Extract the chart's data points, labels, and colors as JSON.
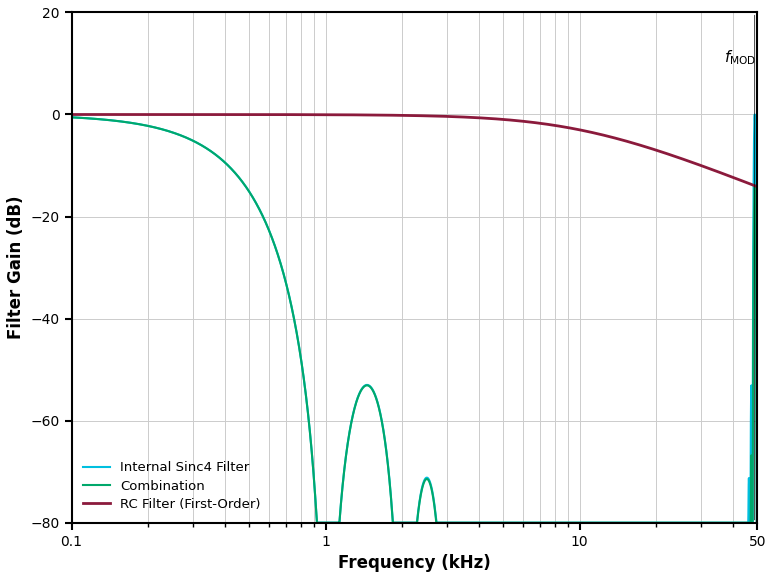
{
  "title": "",
  "xlabel": "Frequency (kHz)",
  "ylabel": "Filter Gain (dB)",
  "xlim_log": [
    0.1,
    50
  ],
  "ylim": [
    -80,
    20
  ],
  "yticks": [
    -80,
    -60,
    -40,
    -20,
    0,
    20
  ],
  "fmod_khz": 48.828,
  "rc_cutoff_khz": 10.0,
  "sinc4_cutoff_khz": 1.0,
  "osr": 48,
  "colors": {
    "rc": "#8B1A3C",
    "sinc4": "#00BFDF",
    "combo": "#00A86B",
    "background": "#ffffff",
    "grid": "#cccccc"
  },
  "legend": [
    "RC Filter (First-Order)",
    "Internal Sinc4 Filter",
    "Combination"
  ],
  "fmod_label": "f",
  "fmod_sub": "MOD"
}
